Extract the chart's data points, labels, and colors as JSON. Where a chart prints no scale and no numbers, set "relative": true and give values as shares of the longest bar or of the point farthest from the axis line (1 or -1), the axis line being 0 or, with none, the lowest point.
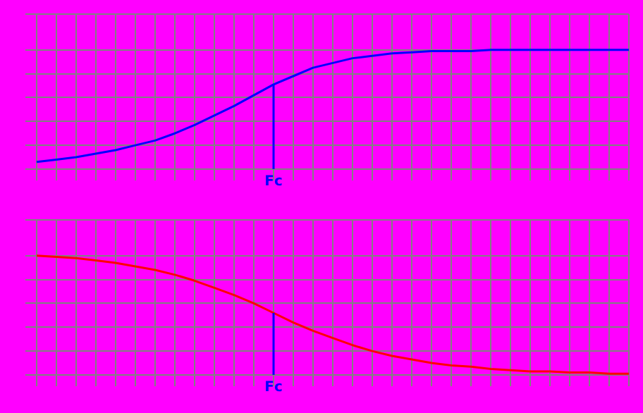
{
  "chart_data": [
    {
      "type": "line",
      "relative": true,
      "grid": true,
      "marker": "none",
      "categories": [
        null,
        null,
        null,
        null,
        null,
        null,
        null,
        null,
        null,
        null,
        null,
        null,
        null,
        null,
        null,
        null,
        null,
        null,
        null,
        null,
        null,
        null,
        null,
        null,
        null,
        null,
        null,
        null,
        null,
        null,
        null
      ],
      "series": [
        {
          "color": "#0000ff",
          "values": [
            0.06,
            0.08,
            0.1,
            0.13,
            0.16,
            0.2,
            0.24,
            0.3,
            0.37,
            0.45,
            0.53,
            0.62,
            0.71,
            0.78,
            0.85,
            0.89,
            0.93,
            0.95,
            0.97,
            0.98,
            0.99,
            0.99,
            0.99,
            1,
            1,
            1,
            1,
            1,
            1,
            1,
            1
          ]
        }
      ],
      "annotations": [
        "Fc"
      ]
    },
    {
      "type": "line",
      "relative": true,
      "grid": true,
      "marker": "none",
      "categories": [
        null,
        null,
        null,
        null,
        null,
        null,
        null,
        null,
        null,
        null,
        null,
        null,
        null,
        null,
        null,
        null,
        null,
        null,
        null,
        null,
        null,
        null,
        null,
        null,
        null,
        null,
        null,
        null,
        null,
        null,
        null
      ],
      "series": [
        {
          "color": "#ff0000",
          "values": [
            1,
            0.99,
            0.98,
            0.96,
            0.94,
            0.91,
            0.88,
            0.84,
            0.79,
            0.73,
            0.67,
            0.6,
            0.52,
            0.44,
            0.37,
            0.31,
            0.25,
            0.2,
            0.16,
            0.13,
            0.1,
            0.08,
            0.07,
            0.05,
            0.04,
            0.03,
            0.03,
            0.02,
            0.02,
            0.01,
            0.01
          ]
        }
      ],
      "annotations": [
        "Fc"
      ]
    }
  ]
}
